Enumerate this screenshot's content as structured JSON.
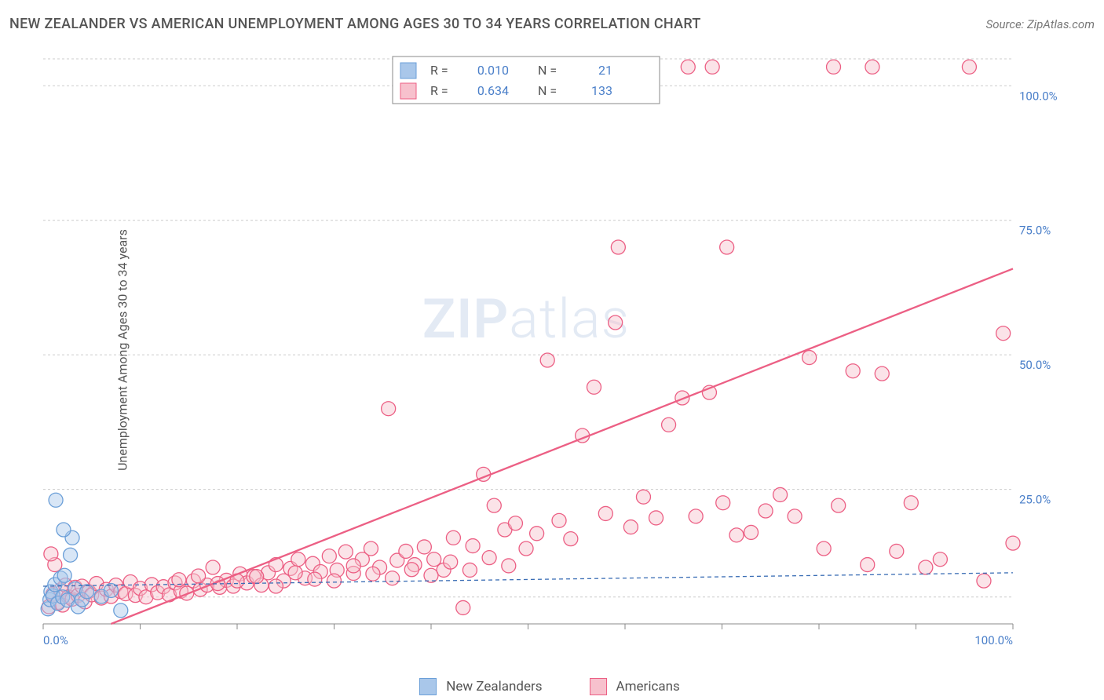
{
  "header": {
    "title": "NEW ZEALANDER VS AMERICAN UNEMPLOYMENT AMONG AGES 30 TO 34 YEARS CORRELATION CHART",
    "source": "Source: ZipAtlas.com"
  },
  "ylabel": "Unemployment Among Ages 30 to 34 years",
  "watermark": {
    "zip": "ZIP",
    "atlas": "atlas"
  },
  "chart": {
    "type": "scatter",
    "xlim": [
      0,
      100
    ],
    "ylim": [
      0,
      105
    ],
    "xticks": [
      0,
      10,
      20,
      30,
      40,
      50,
      60,
      70,
      80,
      90,
      100
    ],
    "xtick_labels": {
      "0": "0.0%",
      "100": "100.0%"
    },
    "yticks": [
      25,
      50,
      75,
      100
    ],
    "ytick_labels": [
      "25.0%",
      "50.0%",
      "75.0%",
      "100.0%"
    ],
    "ygrid_values": [
      5,
      25,
      50,
      75,
      100,
      105
    ],
    "background_color": "#ffffff",
    "grid_color": "#cccccc",
    "axis_label_color": "#4a7fc9",
    "point_radius": 9,
    "series": [
      {
        "name": "New Zealanders",
        "color_fill": "#a9c7ea",
        "color_stroke": "#6b9fd8",
        "fill_opacity": 0.45,
        "R": "0.010",
        "N": "21",
        "trend": {
          "x1": 0,
          "y1": 7.0,
          "x2": 100,
          "y2": 9.5,
          "stroke": "#3b6eb5",
          "dash": "5,4",
          "w": 1.3
        },
        "points": [
          [
            0.5,
            2.8
          ],
          [
            0.7,
            4.5
          ],
          [
            0.8,
            6.0
          ],
          [
            1.0,
            5.2
          ],
          [
            1.2,
            7.3
          ],
          [
            1.5,
            3.8
          ],
          [
            1.8,
            8.5
          ],
          [
            2.0,
            5.0
          ],
          [
            2.2,
            9.0
          ],
          [
            2.5,
            4.4
          ],
          [
            2.8,
            12.8
          ],
          [
            3.0,
            16.0
          ],
          [
            3.3,
            6.5
          ],
          [
            3.6,
            3.2
          ],
          [
            1.3,
            23.0
          ],
          [
            2.1,
            17.5
          ],
          [
            4.0,
            4.5
          ],
          [
            4.5,
            6.0
          ],
          [
            6.0,
            5.1
          ],
          [
            7.0,
            6.2
          ],
          [
            8.0,
            2.5
          ]
        ]
      },
      {
        "name": "Americans",
        "color_fill": "#f7c1cd",
        "color_stroke": "#ec5f84",
        "fill_opacity": 0.45,
        "R": "0.634",
        "N": "133",
        "trend": {
          "x1": 7,
          "y1": 0,
          "x2": 100,
          "y2": 66,
          "stroke": "#ec5f84",
          "dash": "",
          "w": 2.3
        },
        "points": [
          [
            0.6,
            3.2
          ],
          [
            1.0,
            5.5
          ],
          [
            1.2,
            11.0
          ],
          [
            1.5,
            4.0
          ],
          [
            1.8,
            6.3
          ],
          [
            2.0,
            3.5
          ],
          [
            0.8,
            13.0
          ],
          [
            2.3,
            7.2
          ],
          [
            2.6,
            5.0
          ],
          [
            3.0,
            4.6
          ],
          [
            3.3,
            6.8
          ],
          [
            3.6,
            5.3
          ],
          [
            4.0,
            7.0
          ],
          [
            4.3,
            4.1
          ],
          [
            4.7,
            6.0
          ],
          [
            5.0,
            5.4
          ],
          [
            5.5,
            7.5
          ],
          [
            6.0,
            4.8
          ],
          [
            6.5,
            6.4
          ],
          [
            7.0,
            5.1
          ],
          [
            7.5,
            7.2
          ],
          [
            8.0,
            6.0
          ],
          [
            8.5,
            5.6
          ],
          [
            9.0,
            7.8
          ],
          [
            9.5,
            5.3
          ],
          [
            10.0,
            6.6
          ],
          [
            10.6,
            5.0
          ],
          [
            11.2,
            7.3
          ],
          [
            11.8,
            5.8
          ],
          [
            12.4,
            6.9
          ],
          [
            13.0,
            5.4
          ],
          [
            13.6,
            7.6
          ],
          [
            14.2,
            6.1
          ],
          [
            14.8,
            5.7
          ],
          [
            15.5,
            8.0
          ],
          [
            16.2,
            6.4
          ],
          [
            16.9,
            7.2
          ],
          [
            17.5,
            10.5
          ],
          [
            18.2,
            6.8
          ],
          [
            18.9,
            8.1
          ],
          [
            19.6,
            7.0
          ],
          [
            20.3,
            9.3
          ],
          [
            21.0,
            7.6
          ],
          [
            21.7,
            8.8
          ],
          [
            22.5,
            7.2
          ],
          [
            23.2,
            9.5
          ],
          [
            24.0,
            11.0
          ],
          [
            24.8,
            8.0
          ],
          [
            25.5,
            10.3
          ],
          [
            26.3,
            12.0
          ],
          [
            27.0,
            8.5
          ],
          [
            27.8,
            11.2
          ],
          [
            28.6,
            9.7
          ],
          [
            29.5,
            12.6
          ],
          [
            30.3,
            10.0
          ],
          [
            31.2,
            13.4
          ],
          [
            32.0,
            9.4
          ],
          [
            32.9,
            12.0
          ],
          [
            33.8,
            14.0
          ],
          [
            34.7,
            10.5
          ],
          [
            35.6,
            40.0
          ],
          [
            36.5,
            11.8
          ],
          [
            37.4,
            13.5
          ],
          [
            38.3,
            11.0
          ],
          [
            39.3,
            14.3
          ],
          [
            40.3,
            12.0
          ],
          [
            41.3,
            10.0
          ],
          [
            42.3,
            16.0
          ],
          [
            43.3,
            3.0
          ],
          [
            44.3,
            14.5
          ],
          [
            45.4,
            27.8
          ],
          [
            46.5,
            22.0
          ],
          [
            47.6,
            17.5
          ],
          [
            48.7,
            18.7
          ],
          [
            49.8,
            14.0
          ],
          [
            50.9,
            16.8
          ],
          [
            52.0,
            49.0
          ],
          [
            53.2,
            19.2
          ],
          [
            54.4,
            15.8
          ],
          [
            55.6,
            35.0
          ],
          [
            56.8,
            44.0
          ],
          [
            56.2,
            103.5
          ],
          [
            57.5,
            103.5
          ],
          [
            58.0,
            20.5
          ],
          [
            59.0,
            56.0
          ],
          [
            59.3,
            70.0
          ],
          [
            60.6,
            18.0
          ],
          [
            61.9,
            23.6
          ],
          [
            63.2,
            19.7
          ],
          [
            64.5,
            37.0
          ],
          [
            65.9,
            42.0
          ],
          [
            66.5,
            103.5
          ],
          [
            67.3,
            20.0
          ],
          [
            68.7,
            43.0
          ],
          [
            69.0,
            103.5
          ],
          [
            70.1,
            22.5
          ],
          [
            70.5,
            70.0
          ],
          [
            71.5,
            16.5
          ],
          [
            73.0,
            17.0
          ],
          [
            74.5,
            21.0
          ],
          [
            76.0,
            24.0
          ],
          [
            77.5,
            20.0
          ],
          [
            79.0,
            49.5
          ],
          [
            80.5,
            14.0
          ],
          [
            81.5,
            103.5
          ],
          [
            82.0,
            22.0
          ],
          [
            83.5,
            47.0
          ],
          [
            85.0,
            11.0
          ],
          [
            85.5,
            103.5
          ],
          [
            86.5,
            46.5
          ],
          [
            88.0,
            13.5
          ],
          [
            89.5,
            22.5
          ],
          [
            91.0,
            10.5
          ],
          [
            92.5,
            12.0
          ],
          [
            95.5,
            103.5
          ],
          [
            97.0,
            8.0
          ],
          [
            99.0,
            54.0
          ],
          [
            100.0,
            15.0
          ],
          [
            14.0,
            8.2
          ],
          [
            16.0,
            8.9
          ],
          [
            18.0,
            7.5
          ],
          [
            20.0,
            8.0
          ],
          [
            22.0,
            8.8
          ],
          [
            24.0,
            7.0
          ],
          [
            26.0,
            9.5
          ],
          [
            28.0,
            8.3
          ],
          [
            30.0,
            8.0
          ],
          [
            32.0,
            10.8
          ],
          [
            34.0,
            9.3
          ],
          [
            36.0,
            8.5
          ],
          [
            38.0,
            10.1
          ],
          [
            40.0,
            9.0
          ],
          [
            42.0,
            11.5
          ],
          [
            44.0,
            10.0
          ],
          [
            46.0,
            12.3
          ],
          [
            48.0,
            10.8
          ]
        ]
      }
    ]
  },
  "legend_top": {
    "labels": {
      "R": "R =",
      "N": "N ="
    }
  },
  "legend_bottom": {
    "items": [
      {
        "label": "New Zealanders",
        "fill": "#a9c7ea",
        "stroke": "#6b9fd8"
      },
      {
        "label": "Americans",
        "fill": "#f7c1cd",
        "stroke": "#ec5f84"
      }
    ]
  }
}
